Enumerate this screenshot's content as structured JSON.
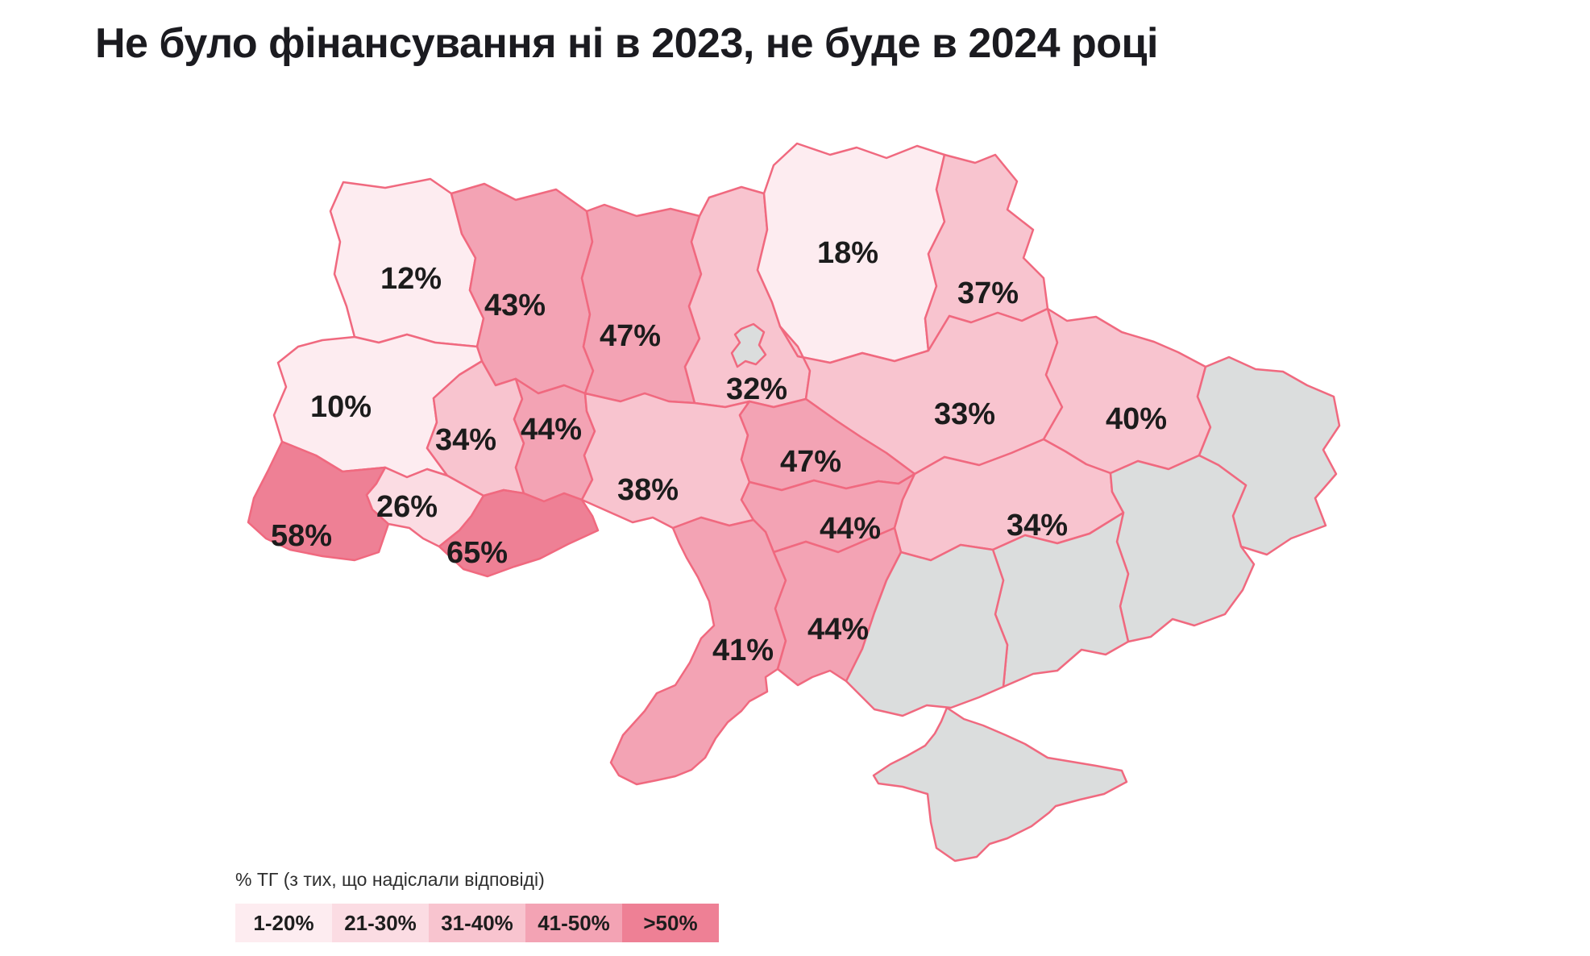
{
  "title": "Не було фінансування ні в 2023, не буде в 2024 році",
  "legend": {
    "caption": "% ТГ (з тих, що надіслали відповіді)",
    "position": "bottom-left",
    "items": [
      {
        "label": "1-20%",
        "color": "#fdecf0"
      },
      {
        "label": "21-30%",
        "color": "#fbdce3"
      },
      {
        "label": "31-40%",
        "color": "#f8c4cf"
      },
      {
        "label": "41-50%",
        "color": "#f3a3b4"
      },
      {
        "label": ">50%",
        "color": "#ee8095"
      }
    ]
  },
  "colors": {
    "border": "#f0697f",
    "no_data": "#dbdddd",
    "background": "#ffffff",
    "title_text": "#1b1b20",
    "value_label": "#1c1c1c"
  },
  "chart_data": {
    "type": "heatmap",
    "subtype": "choropleth-map-ukraine-oblasts",
    "title": "Не було фінансування ні в 2023, не буде в 2024 році",
    "unit": "% ТГ (з тих, що надіслали відповіді)",
    "buckets": [
      "1-20%",
      "21-30%",
      "31-40%",
      "41-50%",
      ">50%"
    ],
    "legend_position": "bottom-left",
    "regions": [
      {
        "id": "volyn",
        "value": 12,
        "label": "12%",
        "bucket": "1-20%"
      },
      {
        "id": "rivne",
        "value": 43,
        "label": "43%",
        "bucket": "41-50%"
      },
      {
        "id": "zhytomyr",
        "value": 47,
        "label": "47%",
        "bucket": "41-50%"
      },
      {
        "id": "kyiv-oblast",
        "value": 32,
        "label": "32%",
        "bucket": "31-40%"
      },
      {
        "id": "chernihiv",
        "value": 18,
        "label": "18%",
        "bucket": "1-20%"
      },
      {
        "id": "sumy",
        "value": 37,
        "label": "37%",
        "bucket": "31-40%"
      },
      {
        "id": "poltava",
        "value": 33,
        "label": "33%",
        "bucket": "31-40%"
      },
      {
        "id": "kharkiv",
        "value": 40,
        "label": "40%",
        "bucket": "31-40%"
      },
      {
        "id": "lviv",
        "value": 10,
        "label": "10%",
        "bucket": "1-20%"
      },
      {
        "id": "ternopil",
        "value": 34,
        "label": "34%",
        "bucket": "31-40%"
      },
      {
        "id": "khmelnytskyi",
        "value": 44,
        "label": "44%",
        "bucket": "41-50%"
      },
      {
        "id": "vinnytsia",
        "value": 38,
        "label": "38%",
        "bucket": "31-40%"
      },
      {
        "id": "cherkasy",
        "value": 47,
        "label": "47%",
        "bucket": "41-50%"
      },
      {
        "id": "kirovohrad",
        "value": 44,
        "label": "44%",
        "bucket": "41-50%"
      },
      {
        "id": "dnipropetrovsk",
        "value": 34,
        "label": "34%",
        "bucket": "31-40%"
      },
      {
        "id": "zakarpattia",
        "value": 58,
        "label": "58%",
        "bucket": ">50%"
      },
      {
        "id": "ivano-frankivsk",
        "value": 26,
        "label": "26%",
        "bucket": "21-30%"
      },
      {
        "id": "chernivtsi",
        "value": 65,
        "label": "65%",
        "bucket": ">50%"
      },
      {
        "id": "odesa",
        "value": 41,
        "label": "41%",
        "bucket": "41-50%"
      },
      {
        "id": "mykolaiv",
        "value": 44,
        "label": "44%",
        "bucket": "41-50%"
      },
      {
        "id": "luhansk",
        "value": null,
        "label": null,
        "bucket": null
      },
      {
        "id": "donetsk",
        "value": null,
        "label": null,
        "bucket": null
      },
      {
        "id": "zaporizhzhia",
        "value": null,
        "label": null,
        "bucket": null
      },
      {
        "id": "kherson",
        "value": null,
        "label": null,
        "bucket": null
      },
      {
        "id": "crimea",
        "value": null,
        "label": null,
        "bucket": null
      },
      {
        "id": "kyiv-city",
        "value": null,
        "label": null,
        "bucket": null
      }
    ]
  }
}
